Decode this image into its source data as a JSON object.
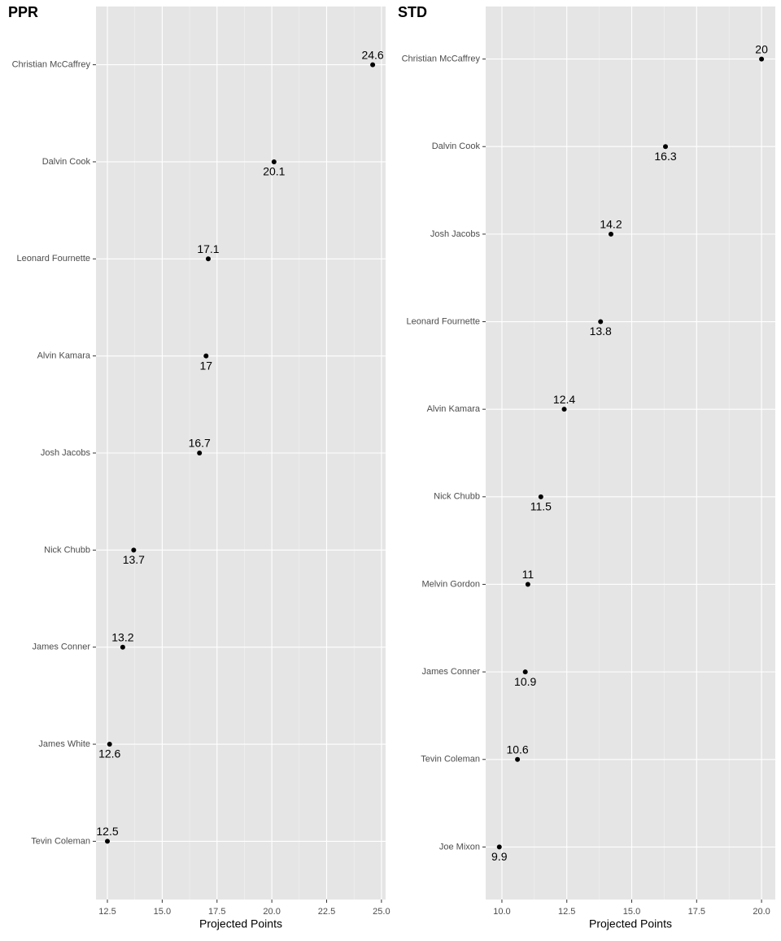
{
  "chart_data": [
    {
      "type": "dot",
      "title": "PPR",
      "x_label": "Projected Points",
      "categories": [
        "Christian McCaffrey",
        "Dalvin Cook",
        "Leonard Fournette",
        "Alvin Kamara",
        "Josh Jacobs",
        "Nick Chubb",
        "James Conner",
        "James White",
        "Tevin Coleman"
      ],
      "values": [
        24.6,
        20.1,
        17.1,
        17,
        16.7,
        13.7,
        13.2,
        12.6,
        12.5
      ],
      "color": "#000000",
      "xlim": [
        11.98,
        25.19
      ],
      "xticks": [
        12.5,
        {
          "value": 15,
          "label": "15.0"
        },
        17.5,
        {
          "value": 20,
          "label": "20.0"
        },
        22.5,
        {
          "value": 25,
          "label": "25.0"
        }
      ],
      "grid": true
    },
    {
      "type": "dot",
      "title": "STD",
      "x_label": "Projected Points",
      "categories": [
        "Christian McCaffrey",
        "Dalvin Cook",
        "Josh Jacobs",
        "Leonard Fournette",
        "Alvin Kamara",
        "Nick Chubb",
        "Melvin Gordon",
        "James Conner",
        "Tevin Coleman",
        "Joe Mixon"
      ],
      "values": [
        20,
        16.3,
        14.2,
        13.8,
        12.4,
        11.5,
        11,
        10.9,
        10.6,
        9.9
      ],
      "color": "#000000",
      "xlim": [
        9.375,
        20.53
      ],
      "xticks": [
        {
          "value": 10,
          "label": "10.0"
        },
        12.5,
        {
          "value": 15,
          "label": "15.0"
        },
        17.5,
        {
          "value": 20,
          "label": "20.0"
        }
      ],
      "grid": true
    }
  ]
}
